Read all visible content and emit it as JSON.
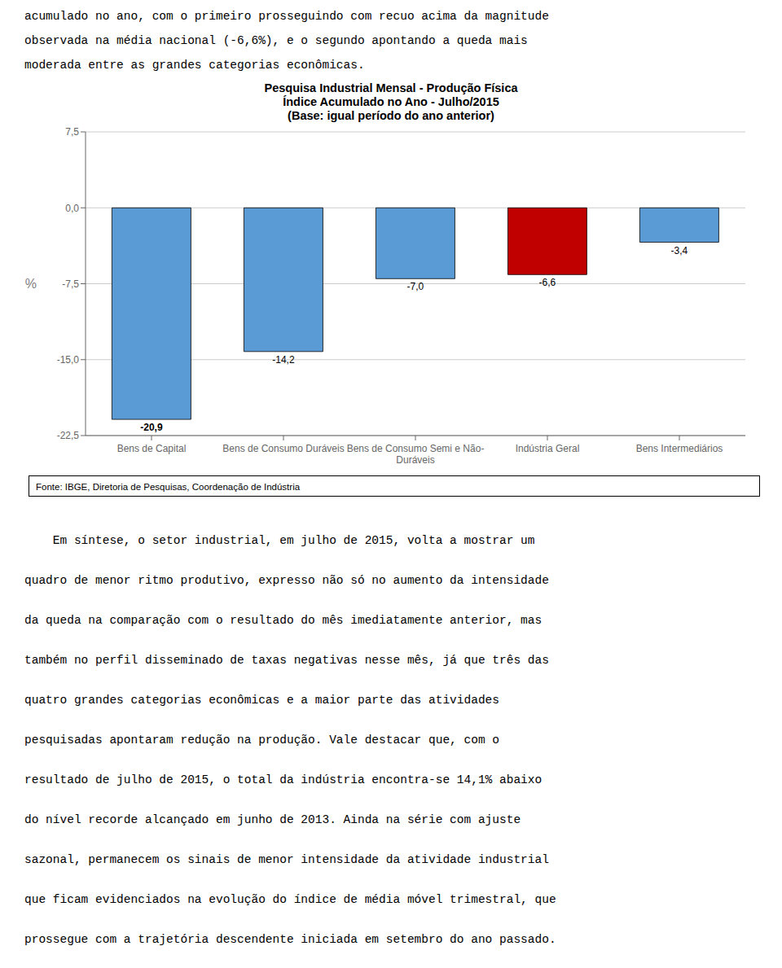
{
  "chart_data": {
    "type": "bar",
    "title": "Pesquisa Industrial Mensal - Produção Física\nÍndice Acumulado no Ano - Julho/2015\n(Base: igual período do ano anterior)",
    "categories": [
      "Bens de Capital",
      "Bens de Consumo Duráveis",
      "Bens de Consumo Semi e Não-\nDuráveis",
      "Indústria Geral",
      "Bens Intermediários"
    ],
    "values": [
      -20.9,
      -14.2,
      -7.0,
      -6.6,
      -3.4
    ],
    "value_labels": [
      "-20,9",
      "-14,2",
      "-7,0",
      "-6,6",
      "-3,4"
    ],
    "data_labels": true,
    "colors": [
      "#5b9bd5",
      "#5b9bd5",
      "#5b9bd5",
      "#c00000",
      "#5b9bd5"
    ],
    "ylabel": "%",
    "ylim": [
      -22.5,
      7.5
    ],
    "yticks": [
      {
        "value": 7.5,
        "label": "7,5"
      },
      {
        "value": 0.0,
        "label": "0,0"
      },
      {
        "value": -7.5,
        "label": "-7,5"
      },
      {
        "value": -15.0,
        "label": "-15,0"
      },
      {
        "value": -22.5,
        "label": "-22,5"
      }
    ],
    "grid": true,
    "annotations": {
      "header": [
        "acumulado no ano, com o primeiro prosseguindo com recuo acima da magnitude",
        "observada na média nacional (-6,6%), e o segundo apontando a queda mais",
        "moderada entre as grandes categorias econômicas."
      ],
      "source": "Fonte: IBGE, Diretoria de Pesquisas, Coordenação de Indústria",
      "body": [
        "    Em síntese, o setor industrial, em julho de 2015, volta a mostrar um",
        "quadro de menor ritmo produtivo, expresso não só no aumento da intensidade",
        "da queda na comparação com o resultado do mês imediatamente anterior, mas",
        "também no perfil disseminado de taxas negativas nesse mês, já que três das",
        "quatro grandes categorias econômicas e a maior parte das atividades",
        "pesquisadas apontaram redução na produção. Vale destacar que, com o",
        "resultado de julho de 2015, o total da indústria encontra-se 14,1% abaixo",
        "do nível recorde alcançado em junho de 2013. Ainda na série com ajuste",
        "sazonal, permanecem os sinais de menor intensidade da atividade industrial",
        "que ficam evidenciados na evolução do índice de média móvel trimestral, que",
        "prossegue com a trajetória descendente iniciada em setembro do ano passado."
      ]
    }
  }
}
